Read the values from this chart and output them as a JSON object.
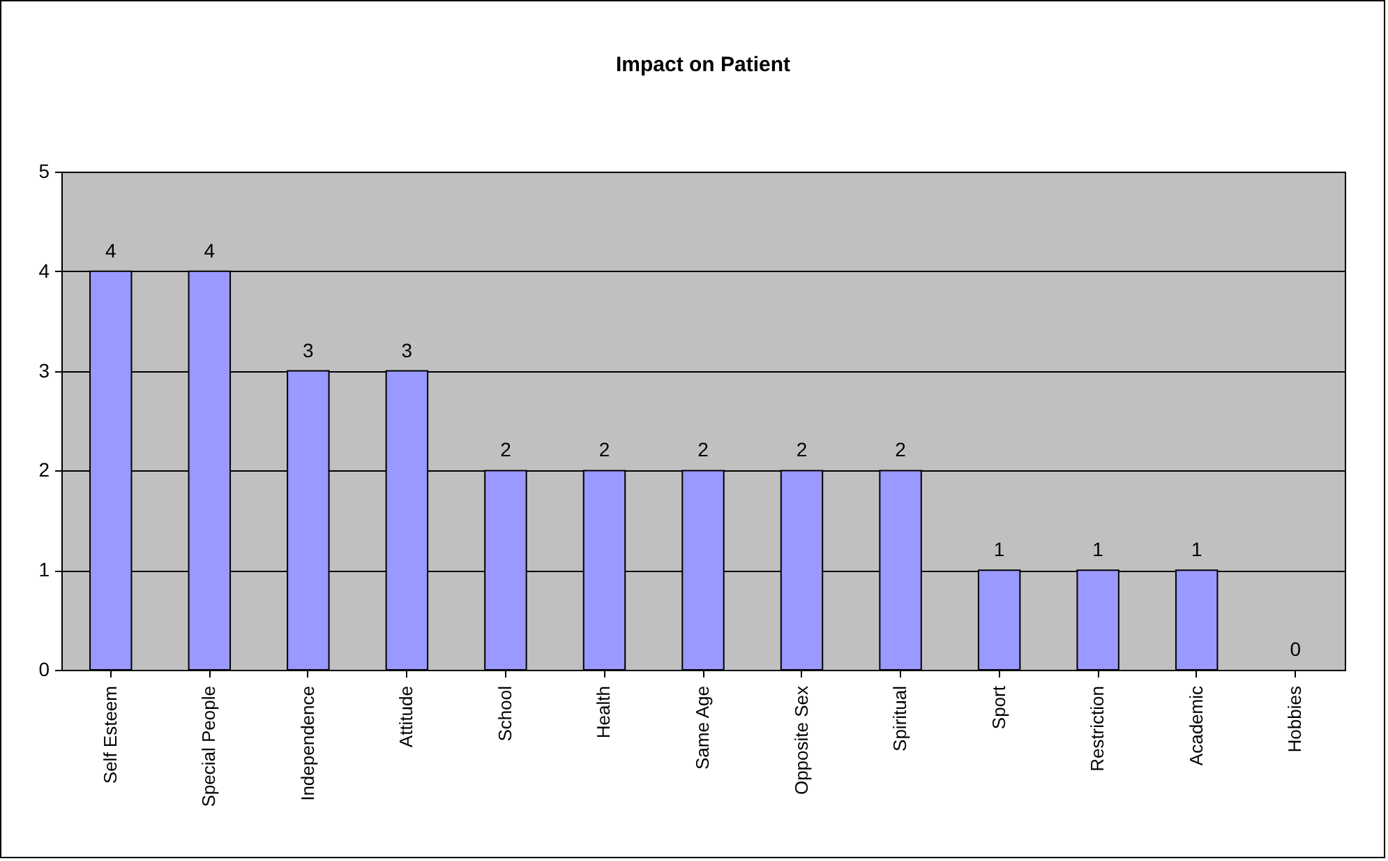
{
  "chart_data": {
    "type": "bar",
    "title": "Impact on Patient",
    "categories": [
      "Self Esteem",
      "Special People",
      "Independence",
      "Attitude",
      "School",
      "Health",
      "Same Age",
      "Opposite Sex",
      "Spiritual",
      "Sport",
      "Restriction",
      "Academic",
      "Hobbies"
    ],
    "values": [
      4,
      4,
      3,
      3,
      2,
      2,
      2,
      2,
      2,
      1,
      1,
      1,
      0
    ],
    "color": "#9999ff",
    "ylim": [
      0,
      5
    ],
    "yticks": [
      0,
      1,
      2,
      3,
      4,
      5
    ],
    "grid": true,
    "data_labels": true
  }
}
